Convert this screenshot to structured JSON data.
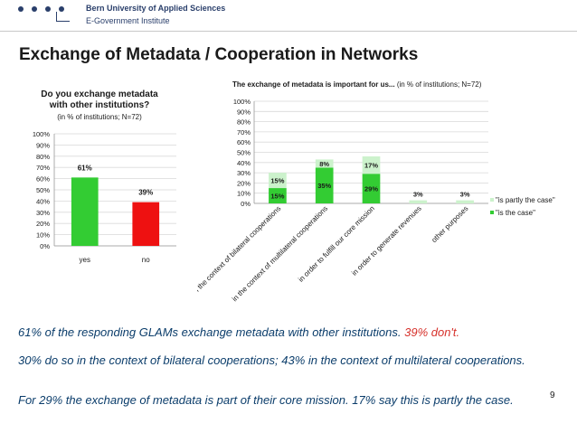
{
  "header": {
    "institution": "Bern University of Applied Sciences",
    "department": "E-Government Institute"
  },
  "slide": {
    "title": "Exchange of Metadata / Cooperation in Networks",
    "number": "9"
  },
  "body": {
    "p1_main": "61% of the responding GLAMs exchange metadata with other institutions.",
    "p1_red": "39% don't.",
    "p2": "30% do so in the context of bilateral cooperations; 43% in the context of multilateral cooperations.",
    "p3": "For 29%  the exchange of metadata is part of their core mission. 17% say this is partly the case."
  },
  "colors": {
    "green": "#33cc33",
    "light_green": "#ccf2cc",
    "red": "#ee1111",
    "navy": "#2a3f6b",
    "text_blue": "#0b3d6b",
    "text_red": "#d6302a"
  },
  "chart_data": [
    {
      "type": "bar",
      "title": "Do you exchange metadata with other institutions?",
      "title_line1": "Do you exchange metadata",
      "title_line2": "with other institutions?",
      "subtitle": "(in % of institutions; N=72)",
      "categories": [
        "yes",
        "no"
      ],
      "values": [
        61,
        39
      ],
      "labels": [
        "61%",
        "39%"
      ],
      "colors": [
        "#33cc33",
        "#ee1111"
      ],
      "ylim": [
        0,
        100
      ],
      "yticks": [
        "0%",
        "10%",
        "20%",
        "30%",
        "40%",
        "50%",
        "60%",
        "70%",
        "80%",
        "90%",
        "100%"
      ],
      "grid": true
    },
    {
      "type": "bar",
      "stacked": true,
      "title": "The exchange of metadata is important for us...",
      "subtitle": "(in % of institutions; N=72)",
      "categories": [
        "in the context of bilateral cooperations",
        "in the context of multilateral cooperations",
        "in order to fulfill our core mission",
        "in order to generate revenues",
        "other purposes"
      ],
      "series": [
        {
          "name": "\"is the case\"",
          "values": [
            15,
            35,
            29,
            0,
            0
          ],
          "labels": [
            "15%",
            "35%",
            "29%",
            "",
            ""
          ],
          "color": "#33cc33"
        },
        {
          "name": "\"is partly the case\"",
          "values": [
            15,
            8,
            17,
            3,
            3
          ],
          "labels": [
            "15%",
            "8%",
            "17%",
            "3%",
            "3%"
          ],
          "color": "#ccf2cc"
        }
      ],
      "ylim": [
        0,
        100
      ],
      "yticks": [
        "0%",
        "10%",
        "20%",
        "30%",
        "40%",
        "50%",
        "60%",
        "70%",
        "80%",
        "90%",
        "100%"
      ],
      "legend_position": "right",
      "grid": true
    }
  ]
}
